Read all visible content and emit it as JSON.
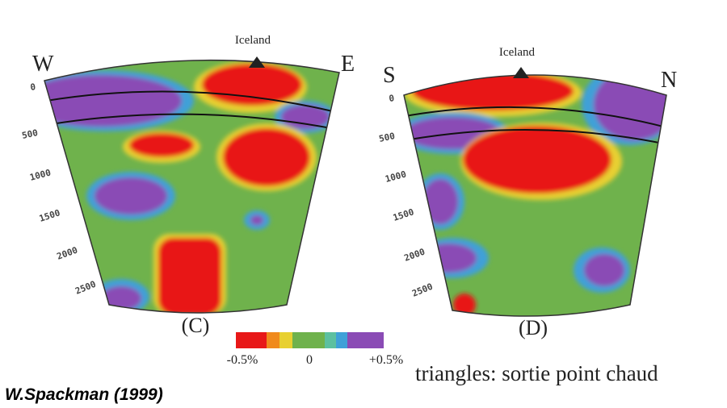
{
  "panels": [
    {
      "west": "W",
      "east": "E",
      "hotspot": "Iceland",
      "depths": [
        "0",
        "500",
        "1000",
        "1500",
        "2000",
        "2500"
      ],
      "label": "(C)"
    },
    {
      "west": "S",
      "east": "N",
      "hotspot": "Iceland",
      "depths": [
        "0",
        "500",
        "1000",
        "1500",
        "2000",
        "2500"
      ],
      "label": "(D)"
    }
  ],
  "colorbar": {
    "left": "-0.5%",
    "middle": "0",
    "right": "+0.5%"
  },
  "caption": "triangles: sortie point chaud",
  "credit": "W.Spackman (1999)"
}
